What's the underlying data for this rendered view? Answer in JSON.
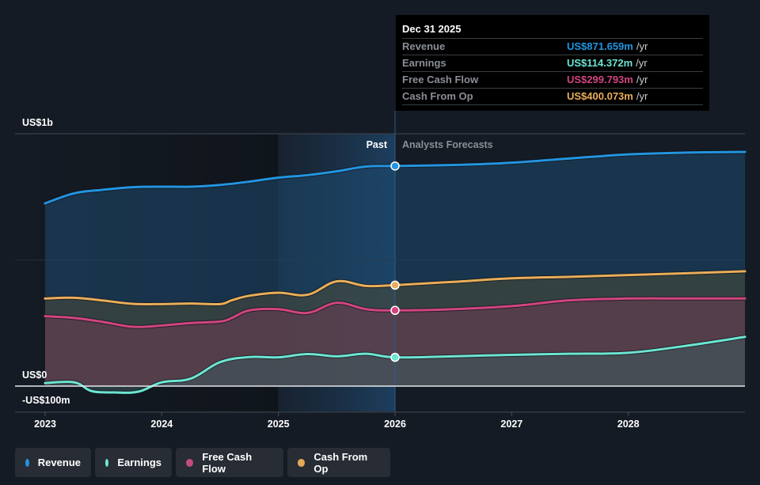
{
  "tooltip": {
    "date": "Dec 31 2025",
    "rows": [
      {
        "label": "Revenue",
        "value": "US$871.659m",
        "unit": "/yr",
        "color": "#2394df"
      },
      {
        "label": "Earnings",
        "value": "US$114.372m",
        "unit": "/yr",
        "color": "#6ce5d2"
      },
      {
        "label": "Free Cash Flow",
        "value": "US$299.793m",
        "unit": "/yr",
        "color": "#d1457f"
      },
      {
        "label": "Cash From Op",
        "value": "US$400.073m",
        "unit": "/yr",
        "color": "#e9ad5a"
      }
    ]
  },
  "labels": {
    "past": "Past",
    "forecast": "Analysts Forecasts"
  },
  "legend": [
    {
      "label": "Revenue",
      "color": "#2394df"
    },
    {
      "label": "Earnings",
      "color": "#6ce5d2"
    },
    {
      "label": "Free Cash Flow",
      "color": "#d1457f"
    },
    {
      "label": "Cash From Op",
      "color": "#e9ad5a"
    }
  ],
  "chart_data": {
    "type": "area",
    "title": "",
    "xlabel": "",
    "ylabel": "",
    "x_ticks": [
      "2023",
      "2024",
      "2025",
      "2026",
      "2027",
      "2028"
    ],
    "y_ticks": [
      {
        "value": 1000,
        "label": "US$1b"
      },
      {
        "value": 0,
        "label": "US$0"
      },
      {
        "value": -100,
        "label": "-US$100m"
      }
    ],
    "ylim": [
      -100,
      1000
    ],
    "xlim": [
      2023.0,
      2029.0
    ],
    "divider_x": 2026.0,
    "highlight_range": [
      2025.0,
      2026.0
    ],
    "grid": true,
    "legend_position": "bottom-left",
    "series": [
      {
        "name": "Revenue",
        "color": "#2394df",
        "x": [
          2023.0,
          2023.25,
          2023.5,
          2023.75,
          2024.0,
          2024.25,
          2024.5,
          2024.75,
          2025.0,
          2025.25,
          2025.5,
          2025.75,
          2026.0,
          2026.5,
          2027.0,
          2027.5,
          2028.0,
          2028.5,
          2029.0
        ],
        "values": [
          724,
          764,
          778,
          788,
          790,
          790,
          797,
          810,
          826,
          836,
          851,
          870,
          872,
          876,
          885,
          902,
          918,
          925,
          928
        ]
      },
      {
        "name": "Cash From Op",
        "color": "#e9ad5a",
        "x": [
          2023.0,
          2023.25,
          2023.5,
          2023.75,
          2024.0,
          2024.25,
          2024.5,
          2024.6,
          2024.75,
          2025.0,
          2025.25,
          2025.5,
          2025.75,
          2026.0,
          2026.5,
          2027.0,
          2027.5,
          2028.0,
          2028.5,
          2029.0
        ],
        "values": [
          347,
          350,
          339,
          326,
          325,
          327,
          325,
          340,
          358,
          370,
          362,
          415,
          397,
          400,
          413,
          427,
          433,
          440,
          447,
          455
        ]
      },
      {
        "name": "Free Cash Flow",
        "color": "#d1457f",
        "x": [
          2023.0,
          2023.25,
          2023.5,
          2023.75,
          2024.0,
          2024.25,
          2024.5,
          2024.6,
          2024.75,
          2025.0,
          2025.25,
          2025.5,
          2025.75,
          2026.0,
          2026.5,
          2027.0,
          2027.5,
          2028.0,
          2028.5,
          2029.0
        ],
        "values": [
          277,
          270,
          254,
          235,
          240,
          250,
          256,
          270,
          300,
          305,
          290,
          330,
          305,
          300,
          305,
          317,
          340,
          347,
          347,
          347
        ]
      },
      {
        "name": "Earnings",
        "color": "#6ce5d2",
        "x": [
          2023.0,
          2023.25,
          2023.4,
          2023.6,
          2023.8,
          2024.0,
          2024.25,
          2024.5,
          2024.75,
          2025.0,
          2025.25,
          2025.5,
          2025.75,
          2026.0,
          2026.5,
          2027.0,
          2027.5,
          2028.0,
          2028.5,
          2029.0
        ],
        "values": [
          12,
          15,
          -20,
          -25,
          -22,
          15,
          30,
          95,
          115,
          114,
          127,
          118,
          128,
          114,
          118,
          124,
          128,
          132,
          160,
          195
        ]
      }
    ]
  }
}
